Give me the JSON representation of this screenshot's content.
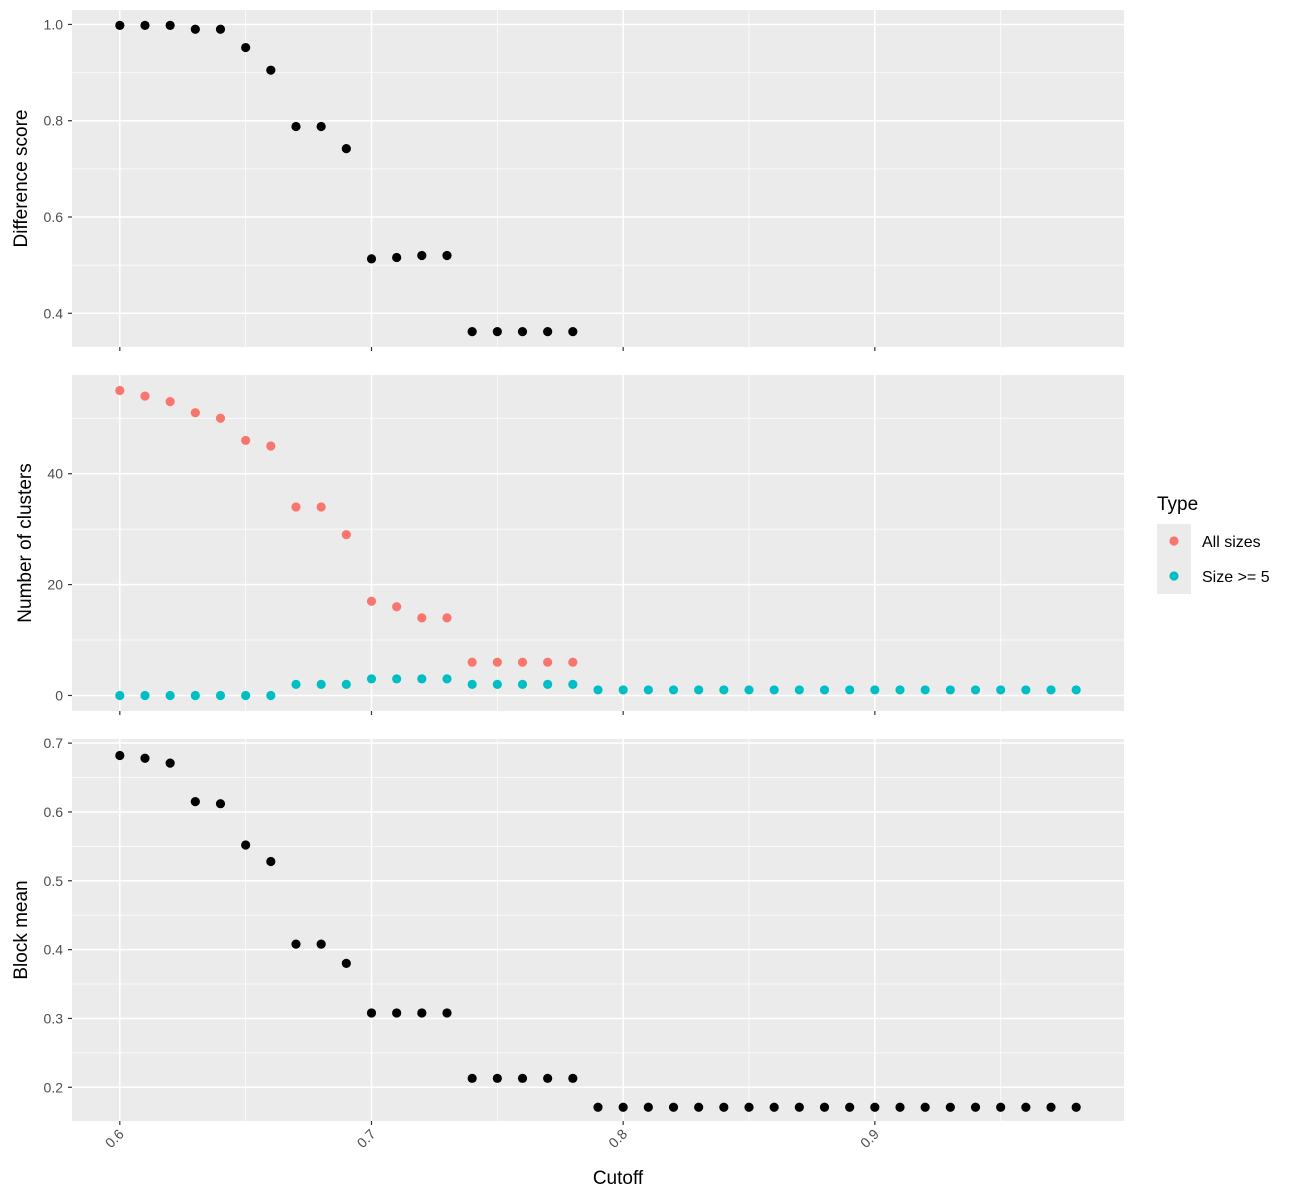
{
  "chart_data": [
    {
      "type": "scatter",
      "panel": "top",
      "ylabel": "Difference score",
      "xlabel": "",
      "ylim": [
        0.33,
        1.03
      ],
      "yticks": [
        0.4,
        0.6,
        0.8,
        1.0
      ],
      "ytick_labels": [
        "0.4",
        "0.6",
        "0.8",
        "1.0"
      ],
      "grid": true,
      "series": [
        {
          "color": "#000000",
          "x": [
            0.6,
            0.61,
            0.62,
            0.63,
            0.64,
            0.65,
            0.66,
            0.67,
            0.68,
            0.69,
            0.7,
            0.71,
            0.72,
            0.73,
            0.74,
            0.75,
            0.76,
            0.77,
            0.78
          ],
          "y": [
            0.998,
            0.998,
            0.998,
            0.99,
            0.99,
            0.952,
            0.905,
            0.788,
            0.788,
            0.742,
            0.513,
            0.516,
            0.52,
            0.52,
            0.362,
            0.362,
            0.362,
            0.362,
            0.362
          ]
        }
      ]
    },
    {
      "type": "scatter",
      "panel": "middle",
      "ylabel": "Number of clusters",
      "xlabel": "",
      "ylim": [
        -2.8,
        57.8
      ],
      "yticks": [
        0,
        20,
        40
      ],
      "ytick_labels": [
        "0",
        "20",
        "40"
      ],
      "grid": true,
      "legend": {
        "title": "Type",
        "position": "right"
      },
      "series": [
        {
          "name": "All sizes",
          "color": "#F8766D",
          "x": [
            0.6,
            0.61,
            0.62,
            0.63,
            0.64,
            0.65,
            0.66,
            0.67,
            0.68,
            0.69,
            0.7,
            0.71,
            0.72,
            0.73,
            0.74,
            0.75,
            0.76,
            0.77,
            0.78
          ],
          "y": [
            55,
            54,
            53,
            51,
            50,
            46,
            45,
            34,
            34,
            29,
            17,
            16,
            14,
            14,
            6,
            6,
            6,
            6,
            6
          ]
        },
        {
          "name": "Size >= 5",
          "color": "#00BFC4",
          "x": [
            0.6,
            0.61,
            0.62,
            0.63,
            0.64,
            0.65,
            0.66,
            0.67,
            0.68,
            0.69,
            0.7,
            0.71,
            0.72,
            0.73,
            0.74,
            0.75,
            0.76,
            0.77,
            0.78,
            0.79,
            0.8,
            0.81,
            0.82,
            0.83,
            0.84,
            0.85,
            0.86,
            0.87,
            0.88,
            0.89,
            0.9,
            0.91,
            0.92,
            0.93,
            0.94,
            0.95,
            0.96,
            0.97,
            0.98
          ],
          "y": [
            0,
            0,
            0,
            0,
            0,
            0,
            0,
            2,
            2,
            2,
            3,
            3,
            3,
            3,
            2,
            2,
            2,
            2,
            2,
            1,
            1,
            1,
            1,
            1,
            1,
            1,
            1,
            1,
            1,
            1,
            1,
            1,
            1,
            1,
            1,
            1,
            1,
            1,
            1
          ]
        }
      ]
    },
    {
      "type": "scatter",
      "panel": "bottom",
      "ylabel": "Block mean",
      "xlabel": "Cutoff",
      "ylim": [
        0.151,
        0.706
      ],
      "yticks": [
        0.2,
        0.3,
        0.4,
        0.5,
        0.6,
        0.7
      ],
      "ytick_labels": [
        "0.2",
        "0.3",
        "0.4",
        "0.5",
        "0.6",
        "0.7"
      ],
      "grid": true,
      "series": [
        {
          "color": "#000000",
          "x": [
            0.6,
            0.61,
            0.62,
            0.63,
            0.64,
            0.65,
            0.66,
            0.67,
            0.68,
            0.69,
            0.7,
            0.71,
            0.72,
            0.73,
            0.74,
            0.75,
            0.76,
            0.77,
            0.78,
            0.79,
            0.8,
            0.81,
            0.82,
            0.83,
            0.84,
            0.85,
            0.86,
            0.87,
            0.88,
            0.89,
            0.9,
            0.91,
            0.92,
            0.93,
            0.94,
            0.95,
            0.96,
            0.97,
            0.98
          ],
          "y": [
            0.682,
            0.678,
            0.671,
            0.615,
            0.612,
            0.552,
            0.528,
            0.408,
            0.408,
            0.38,
            0.308,
            0.308,
            0.308,
            0.308,
            0.213,
            0.213,
            0.213,
            0.213,
            0.213,
            0.171,
            0.171,
            0.171,
            0.171,
            0.171,
            0.171,
            0.171,
            0.171,
            0.171,
            0.171,
            0.171,
            0.171,
            0.171,
            0.171,
            0.171,
            0.171,
            0.171,
            0.171,
            0.171,
            0.171
          ]
        }
      ]
    }
  ],
  "x_axis": {
    "title": "Cutoff",
    "xlim": [
      0.581,
      0.999
    ],
    "ticks": [
      0.6,
      0.7,
      0.8,
      0.9
    ],
    "tick_labels": [
      "0.6",
      "0.7",
      "0.8",
      "0.9"
    ],
    "tick_label_rotation_deg": -45
  },
  "legend": {
    "title": "Type",
    "items": [
      {
        "label": "All sizes",
        "color": "#F8766D"
      },
      {
        "label": "Size >= 5",
        "color": "#00BFC4"
      }
    ]
  },
  "colors": {
    "panel_bg": "#EBEBEB",
    "grid_major": "#FFFFFF",
    "axis_tick": "#333333"
  }
}
